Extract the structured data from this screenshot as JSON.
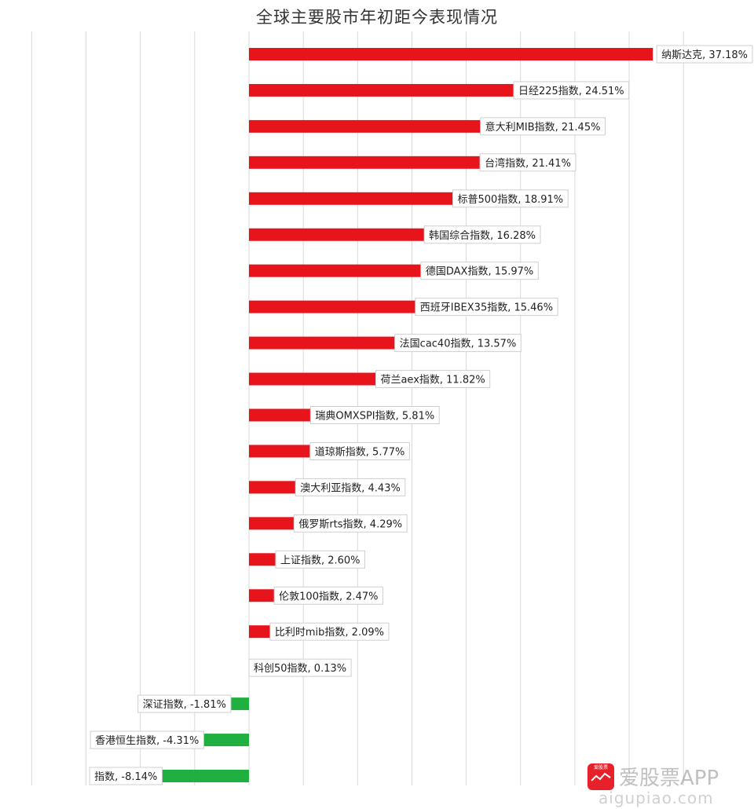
{
  "chart_data": {
    "type": "bar",
    "orientation": "horizontal",
    "title": "全球主要股市年初距今表现情况",
    "categories": [
      "纳斯达克",
      "日经225指数",
      "意大利MIB指数",
      "台湾指数",
      "标普500指数",
      "韩国综合指数",
      "德国DAX指数",
      "西班牙IBEX35指数",
      "法国cac40指数",
      "荷兰aex指数",
      "瑞典OMXSPI指数",
      "道琼斯指数",
      "澳大利亚指数",
      "俄罗斯rts指数",
      "上证指数",
      "伦敦100指数",
      "比利时mib指数",
      "科创50指数",
      "深证指数",
      "香港恒生指数",
      "指数"
    ],
    "values": [
      37.18,
      24.51,
      21.45,
      21.41,
      18.91,
      16.28,
      15.97,
      15.46,
      13.57,
      11.82,
      5.81,
      5.77,
      4.43,
      4.29,
      2.6,
      2.47,
      2.09,
      0.13,
      -1.81,
      -4.31,
      -8.14
    ],
    "data_labels": [
      "纳斯达克, 37.18%",
      "日经225指数, 24.51%",
      "意大利MIB指数, 21.45%",
      "台湾指数, 21.41%",
      "标普500指数, 18.91%",
      "韩国综合指数, 16.28%",
      "德国DAX指数, 15.97%",
      "西班牙IBEX35指数, 15.46%",
      "法国cac40指数, 13.57%",
      "荷兰aex指数, 11.82%",
      "瑞典OMXSPI指数, 5.81%",
      "道琼斯指数, 5.77%",
      "澳大利亚指数, 4.43%",
      "俄罗斯rts指数, 4.29%",
      "上证指数, 2.60%",
      "伦敦100指数, 2.47%",
      "比利时mib指数, 2.09%",
      "科创50指数, 0.13%",
      "深证指数, -1.81%",
      "香港恒生指数, -4.31%",
      "指数, -8.14%"
    ],
    "xlim": [
      -20,
      40
    ],
    "grid": true,
    "legend": "none",
    "colors": {
      "positive": "#e8141c",
      "negative": "#1fb040"
    }
  },
  "watermark": {
    "logo_text": "爱股票",
    "brand": "爱股票APP",
    "site": "aigupiao.com"
  }
}
